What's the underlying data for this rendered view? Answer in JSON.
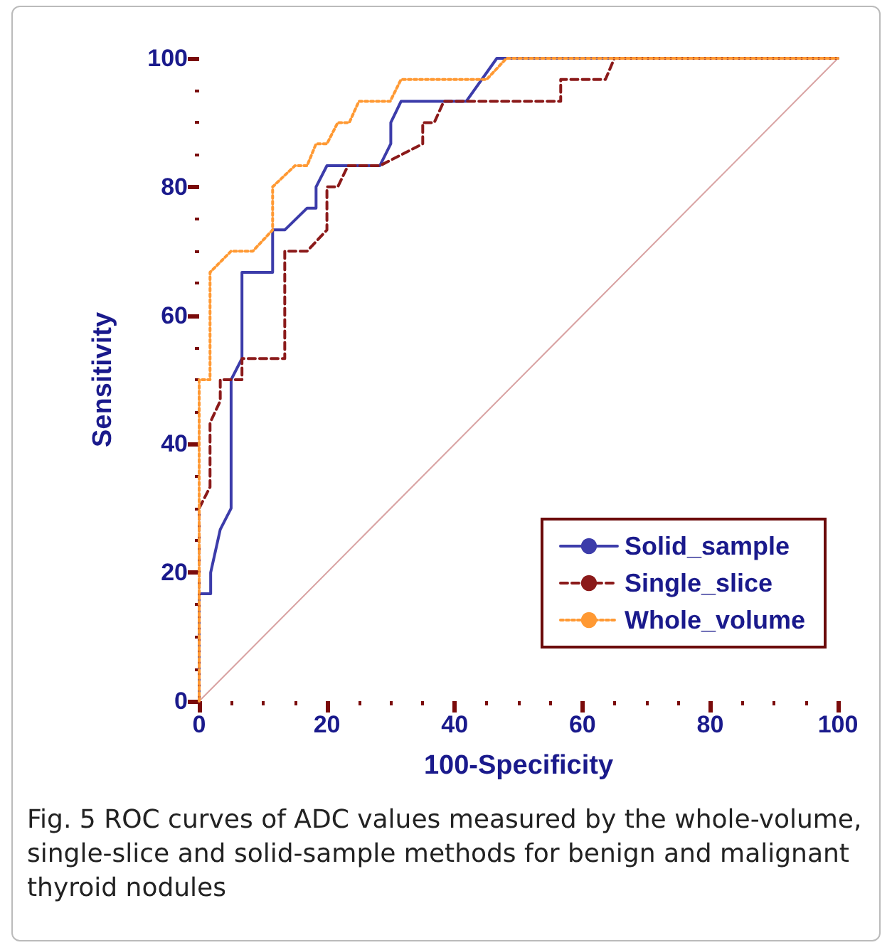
{
  "chart_data": {
    "type": "line",
    "xlabel": "100-Specificity",
    "ylabel": "Sensitivity",
    "xlim": [
      0,
      100
    ],
    "ylim": [
      0,
      100
    ],
    "xticks": [
      0,
      20,
      40,
      60,
      80,
      100
    ],
    "yticks": [
      0,
      20,
      40,
      60,
      80,
      100
    ],
    "grid": false,
    "legend": "bottom right",
    "marker": "none",
    "series": [
      {
        "name": "Solid_sample",
        "color": "#3c3caa",
        "line_style": "solid",
        "x": [
          0,
          0,
          1.8,
          1.8,
          3.3,
          5,
          5,
          6.7,
          6.7,
          11.5,
          11.5,
          13.4,
          16.9,
          18.3,
          18.3,
          20,
          28.3,
          30,
          30,
          31.6,
          41.8,
          46.6,
          100
        ],
        "values": [
          0,
          16.7,
          16.7,
          20,
          26.7,
          30,
          50,
          53.3,
          66.7,
          66.7,
          73.3,
          73.3,
          76.7,
          76.7,
          80,
          83.3,
          83.3,
          86.7,
          90,
          93.3,
          93.3,
          100,
          100
        ]
      },
      {
        "name": "Single_slice",
        "color": "#8b1a1a",
        "line_style": "dashed",
        "x": [
          0,
          0,
          1.7,
          1.7,
          3.3,
          3.3,
          6.7,
          6.7,
          13.4,
          13.4,
          16.9,
          20,
          20,
          21.7,
          23.3,
          28.3,
          35,
          35,
          36.8,
          38.3,
          56.6,
          56.6,
          63.6,
          65,
          100
        ],
        "values": [
          0,
          30,
          33.3,
          43.3,
          46.7,
          50,
          50,
          53.3,
          53.3,
          70,
          70,
          73.3,
          80,
          80,
          83.3,
          83.3,
          86.7,
          90,
          90,
          93.3,
          93.3,
          96.7,
          96.7,
          100,
          100
        ]
      },
      {
        "name": "Whole_volume",
        "color": "#ff9933",
        "line_style": "dotted",
        "x": [
          0,
          0,
          1.7,
          1.7,
          5,
          8.4,
          11.5,
          11.5,
          15,
          16.9,
          18.3,
          20,
          21.7,
          23.5,
          25,
          29.9,
          31.6,
          45,
          48.1,
          100
        ],
        "values": [
          0,
          50,
          50,
          66.7,
          70,
          70,
          73.3,
          80,
          83.3,
          83.3,
          86.7,
          86.7,
          90,
          90,
          93.3,
          93.3,
          96.7,
          96.7,
          100,
          100
        ]
      },
      {
        "color": "#d9a3a3",
        "line_style": "solid",
        "x": [
          0,
          100
        ],
        "values": [
          0,
          100
        ]
      }
    ],
    "annotations": [
      "Fig. 5 ROC curves of ADC values measured by the whole-volume, single-slice and solid-sample methods for benign and malignant thyroid nodules"
    ]
  }
}
